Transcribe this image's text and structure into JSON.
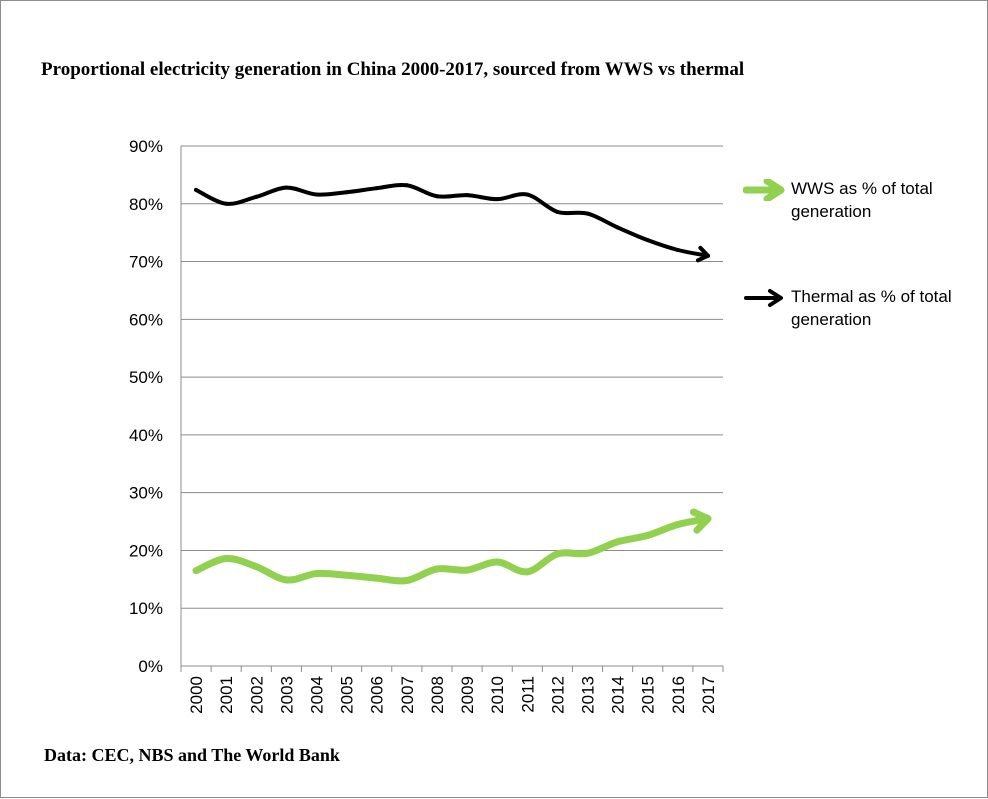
{
  "chart_data": {
    "type": "line",
    "title": "Proportional electricity generation in China 2000-2017, sourced from WWS vs thermal",
    "xlabel": "",
    "ylabel": "",
    "categories": [
      "2000",
      "2001",
      "2002",
      "2003",
      "2004",
      "2005",
      "2006",
      "2007",
      "2008",
      "2009",
      "2010",
      "2011",
      "2012",
      "2013",
      "2014",
      "2015",
      "2016",
      "2017"
    ],
    "ylim": [
      0,
      90
    ],
    "yticks": [
      "0%",
      "10%",
      "20%",
      "30%",
      "40%",
      "50%",
      "60%",
      "70%",
      "80%",
      "90%"
    ],
    "grid": true,
    "legend_position": "right",
    "series": [
      {
        "name": "WWS as % of total generation",
        "color": "#92d050",
        "values": [
          16.5,
          18.6,
          17.2,
          14.9,
          16.0,
          15.7,
          15.2,
          14.8,
          16.8,
          16.6,
          18.0,
          16.3,
          19.4,
          19.5,
          21.5,
          22.6,
          24.5,
          25.5
        ],
        "marker": "arrow"
      },
      {
        "name": "Thermal as % of total generation",
        "color": "#000000",
        "values": [
          82.4,
          80.0,
          81.2,
          82.8,
          81.6,
          82.0,
          82.7,
          83.2,
          81.3,
          81.5,
          80.8,
          81.6,
          78.6,
          78.3,
          75.9,
          73.7,
          72.0,
          71.0
        ],
        "marker": "arrow"
      }
    ],
    "source": "Data: CEC, NBS and The World  Bank"
  }
}
